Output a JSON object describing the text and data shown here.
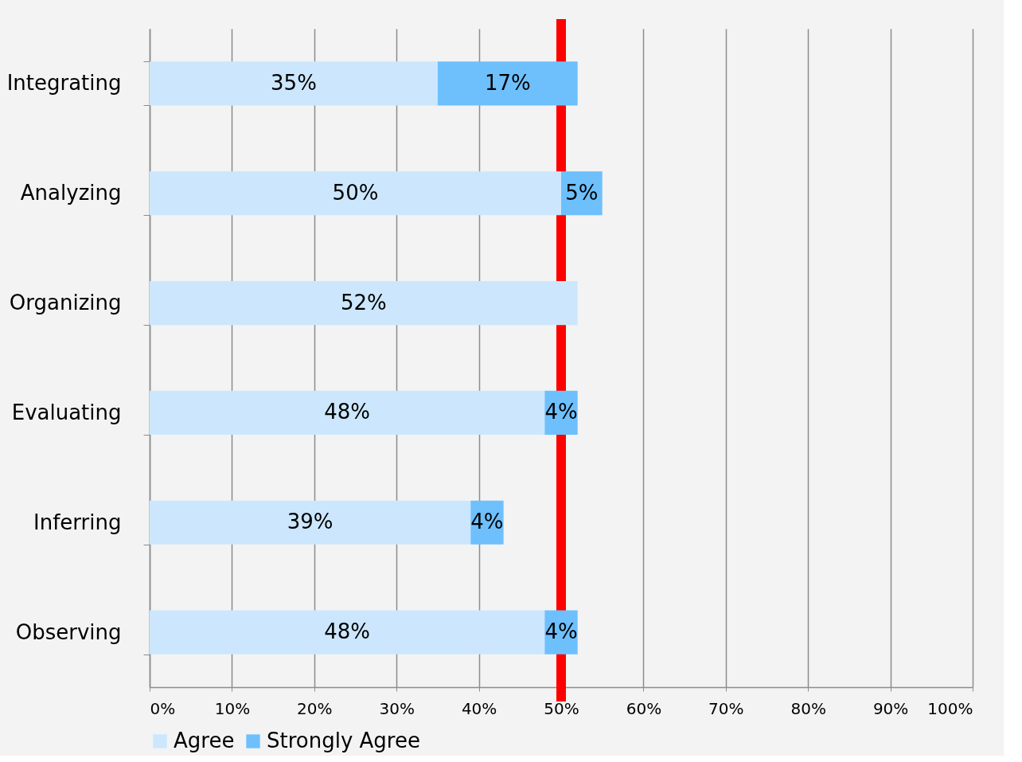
{
  "chart_data": {
    "type": "bar",
    "orientation": "horizontal",
    "stacked": true,
    "categories": [
      "Integrating",
      "Analyzing",
      "Organizing",
      "Evaluating",
      "Inferring",
      "Observing"
    ],
    "series": [
      {
        "name": "Agree",
        "color": "#cce7fd",
        "values": [
          35,
          50,
          52,
          48,
          39,
          48
        ],
        "value_labels": [
          "35%",
          "50%",
          "52%",
          "48%",
          "39%",
          "48%"
        ]
      },
      {
        "name": "Strongly Agree",
        "color": "#6ec0fd",
        "values": [
          17,
          5,
          null,
          4,
          4,
          4
        ],
        "value_labels": [
          "17%",
          "5%",
          null,
          "4%",
          "4%",
          "4%"
        ]
      }
    ],
    "xlim": [
      0,
      100
    ],
    "xticks": [
      {
        "value": 0,
        "label": "0%"
      },
      {
        "value": 10,
        "label": "10%"
      },
      {
        "value": 20,
        "label": "20%"
      },
      {
        "value": 30,
        "label": "30%"
      },
      {
        "value": 40,
        "label": "40%"
      },
      {
        "value": 50,
        "label": "50%"
      },
      {
        "value": 60,
        "label": "60%"
      },
      {
        "value": 70,
        "label": "70%"
      },
      {
        "value": 80,
        "label": "80%"
      },
      {
        "value": 90,
        "label": "90%"
      },
      {
        "value": 100,
        "label": "100%"
      }
    ],
    "grid": "x",
    "legend": "bottom",
    "ref_lines": [
      {
        "axis": "x",
        "value": 50,
        "color": "#ff0000"
      }
    ]
  }
}
